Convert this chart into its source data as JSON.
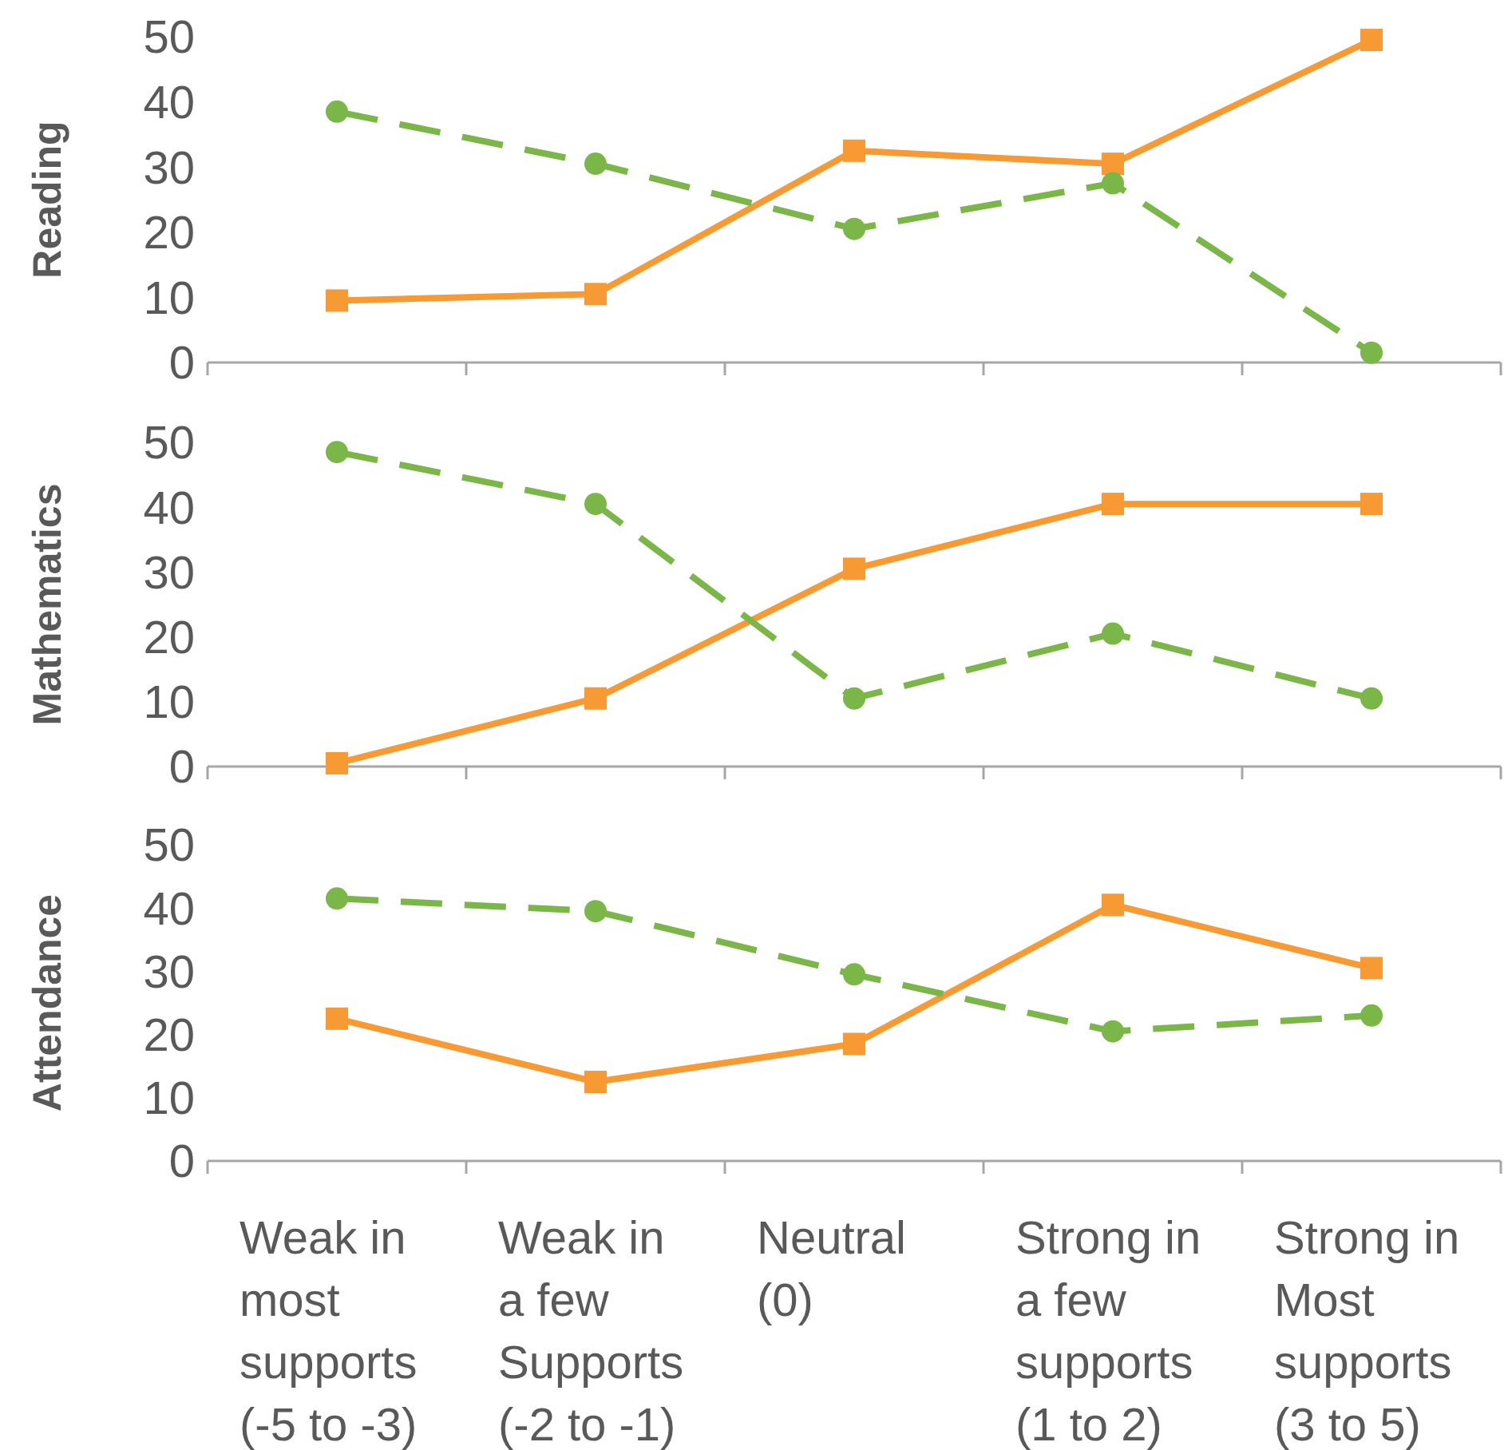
{
  "chart_data": [
    {
      "type": "line",
      "ylabel": "Reading",
      "categories": [
        null,
        null,
        null,
        null,
        null
      ],
      "ylim": [
        0,
        50
      ],
      "yticks": [
        0,
        10,
        20,
        30,
        40,
        50
      ],
      "tick_labels": "y",
      "series": [
        {
          "color": "#f79a33",
          "marker": "square",
          "line_style": "solid",
          "values": [
            9.5,
            10.5,
            32.5,
            30.5,
            49.5
          ]
        },
        {
          "color": "#7ab648",
          "marker": "circle",
          "line_style": "dashed",
          "values": [
            38.5,
            30.5,
            20.5,
            27.5,
            1.5
          ]
        }
      ]
    },
    {
      "type": "line",
      "ylabel": "Mathematics",
      "categories": [
        null,
        null,
        null,
        null,
        null
      ],
      "ylim": [
        0,
        50
      ],
      "yticks": [
        0,
        10,
        20,
        30,
        40,
        50
      ],
      "tick_labels": "y",
      "series": [
        {
          "color": "#f79a33",
          "marker": "square",
          "line_style": "solid",
          "values": [
            0.5,
            10.5,
            30.5,
            40.5,
            40.5
          ]
        },
        {
          "color": "#7ab648",
          "marker": "circle",
          "line_style": "dashed",
          "values": [
            48.5,
            40.5,
            10.5,
            20.5,
            10.5
          ]
        }
      ]
    },
    {
      "type": "line",
      "ylabel": "Attendance",
      "categories": [
        "Weak in most supports (-5 to -3)",
        "Weak in a few Supports (-2 to -1)",
        "Neutral (0)",
        "Strong in a few supports (1 to 2)",
        "Strong in Most supports (3 to 5)"
      ],
      "ylim": [
        0,
        50
      ],
      "yticks": [
        0,
        10,
        20,
        30,
        40,
        50
      ],
      "series": [
        {
          "color": "#f79a33",
          "marker": "square",
          "line_style": "solid",
          "values": [
            22.5,
            12.5,
            18.5,
            40.5,
            30.5
          ]
        },
        {
          "color": "#7ab648",
          "marker": "circle",
          "line_style": "dashed",
          "values": [
            41.5,
            39.5,
            29.5,
            20.5,
            23
          ]
        }
      ]
    }
  ]
}
